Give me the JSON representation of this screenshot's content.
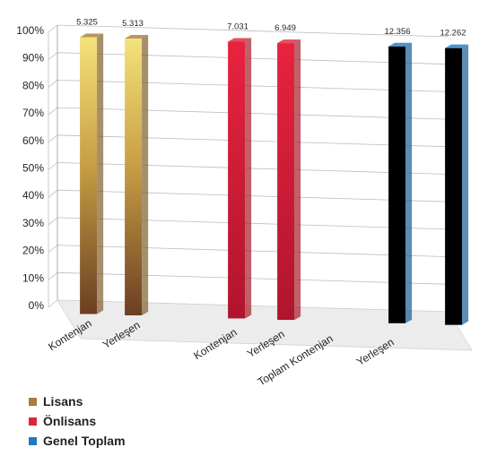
{
  "chart_data": {
    "type": "bar",
    "title": "",
    "xlabel": "",
    "ylabel": "",
    "ylim": [
      0,
      100
    ],
    "y_ticks": [
      "0%",
      "10%",
      "20%",
      "30%",
      "40%",
      "50%",
      "60%",
      "70%",
      "80%",
      "90%",
      "100%"
    ],
    "grid": true,
    "legend_position": "bottom-left",
    "categories": [
      "Kontenjan",
      "Yerleşen",
      "Kontenjan",
      "Yerleşen",
      "Toplam Kontenjan",
      "Yerleşen"
    ],
    "bars": [
      {
        "category": "Kontenjan",
        "series": "Lisans",
        "percent": 100,
        "label": "5.325"
      },
      {
        "category": "Yerleşen",
        "series": "Lisans",
        "percent": 100,
        "label": "5.313"
      },
      {
        "category": "Kontenjan",
        "series": "Önlisans",
        "percent": 100,
        "label": "7.031"
      },
      {
        "category": "Yerleşen",
        "series": "Önlisans",
        "percent": 100,
        "label": "6.949"
      },
      {
        "category": "Toplam Kontenjan",
        "series": "Genel Toplam",
        "percent": 100,
        "label": "12.356"
      },
      {
        "category": "Yerleşen",
        "series": "Genel Toplam",
        "percent": 100,
        "label": "12.262"
      }
    ],
    "series": [
      {
        "name": "Lisans",
        "color": "#a87c3c"
      },
      {
        "name": "Önlisans",
        "color": "#d92638"
      },
      {
        "name": "Genel Toplam",
        "color": "#1f78c1"
      }
    ]
  }
}
